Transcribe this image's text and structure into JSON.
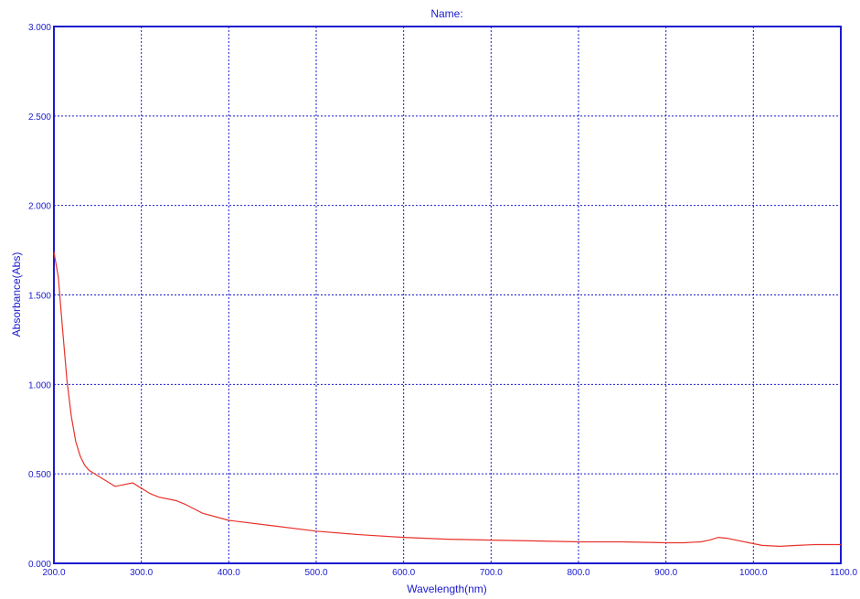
{
  "chart_data": {
    "type": "line",
    "title": "Name:",
    "xlabel": "Wavelength(nm)",
    "ylabel": "Absorbance(Abs)",
    "xlim": [
      200,
      1100
    ],
    "ylim": [
      0,
      3
    ],
    "grid": true,
    "x_ticks": [
      "200.0",
      "300.0",
      "400.0",
      "500.0",
      "600.0",
      "700.0",
      "800.0",
      "900.0",
      "1000.0",
      "1100.0"
    ],
    "y_ticks": [
      "0.000",
      "0.500",
      "1.000",
      "1.500",
      "2.000",
      "2.500",
      "3.000"
    ],
    "colors": {
      "axis": "#1a1ad0",
      "grid": "#1a1ad0",
      "line": "#e8322c"
    },
    "series": [
      {
        "x": [
          200,
          205,
          210,
          215,
          220,
          225,
          230,
          235,
          240,
          250,
          260,
          270,
          280,
          290,
          300,
          310,
          320,
          340,
          350,
          370,
          400,
          450,
          500,
          550,
          600,
          650,
          700,
          750,
          800,
          850,
          900,
          920,
          940,
          950,
          960,
          970,
          980,
          1000,
          1010,
          1030,
          1050,
          1070,
          1100
        ],
        "y": [
          1.74,
          1.6,
          1.3,
          1.02,
          0.82,
          0.68,
          0.6,
          0.55,
          0.52,
          0.49,
          0.46,
          0.43,
          0.44,
          0.45,
          0.42,
          0.39,
          0.37,
          0.35,
          0.33,
          0.28,
          0.24,
          0.21,
          0.18,
          0.16,
          0.145,
          0.135,
          0.13,
          0.125,
          0.12,
          0.12,
          0.115,
          0.115,
          0.12,
          0.13,
          0.145,
          0.14,
          0.13,
          0.11,
          0.1,
          0.095,
          0.1,
          0.105,
          0.105
        ]
      }
    ]
  }
}
